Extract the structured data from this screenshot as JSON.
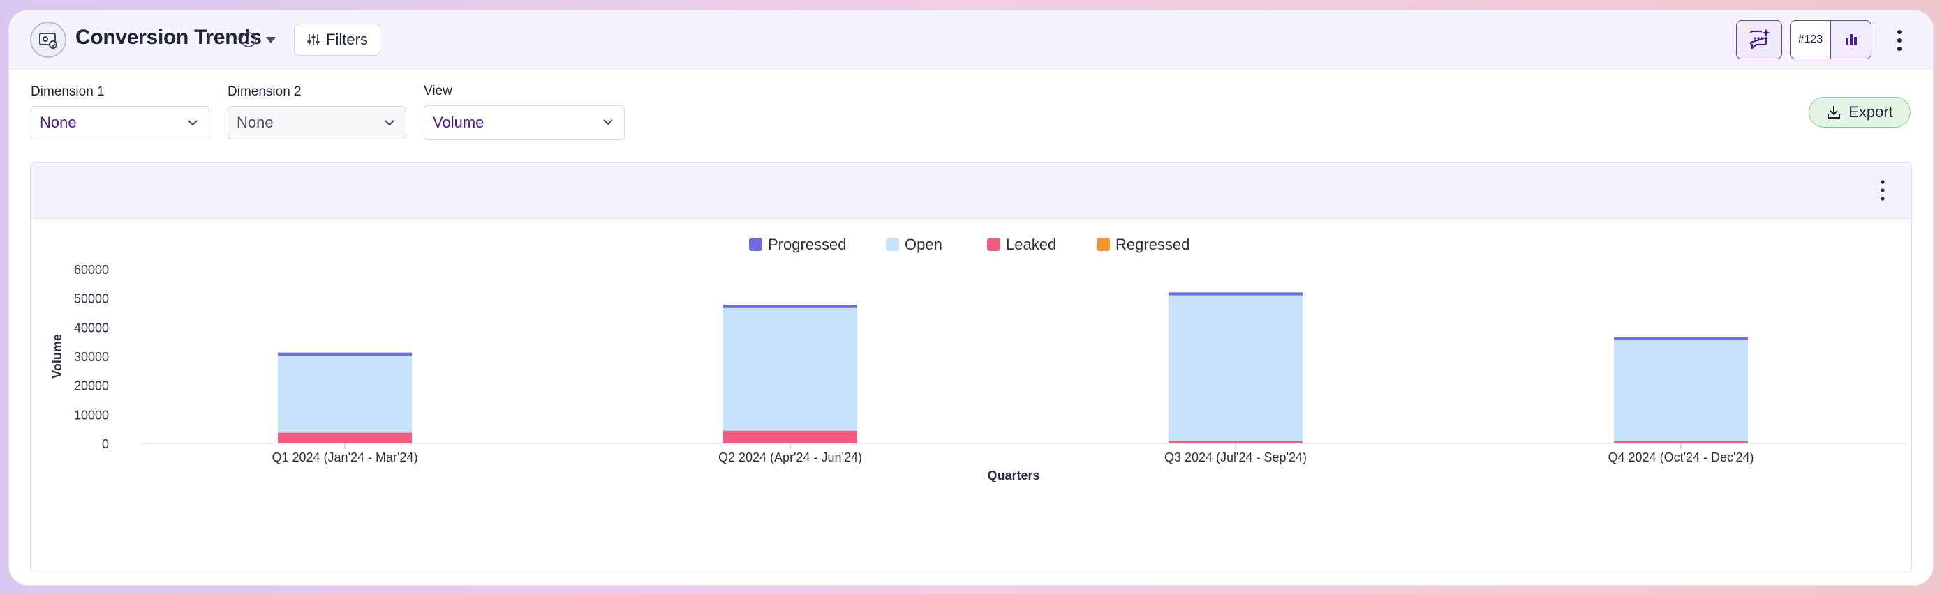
{
  "header": {
    "title": "Conversion Trends",
    "filters_label": "Filters",
    "toggle_number_label": "#123"
  },
  "controls": {
    "dimension1": {
      "label": "Dimension 1",
      "value": "None"
    },
    "dimension2": {
      "label": "Dimension 2",
      "value": "None"
    },
    "view": {
      "label": "View",
      "value": "Volume"
    },
    "export_label": "Export"
  },
  "colors": {
    "progressed": "#6c6ce0",
    "open": "#c6e3fb",
    "leaked": "#f25a80",
    "regressed": "#f7932f",
    "accent": "#6b3fa8"
  },
  "icons": {
    "logo": "chart-widget-icon",
    "info": "info-icon",
    "caret": "caret-down-icon",
    "filters": "sliders-icon",
    "chat": "ai-chat-sparkle-icon",
    "chart_toggle": "bar-chart-icon",
    "menu": "kebab-menu-icon",
    "export": "download-icon"
  },
  "chart_data": {
    "type": "bar",
    "stacked": true,
    "xlabel": "Quarters",
    "ylabel": "Volume",
    "ylim": [
      0,
      60000
    ],
    "yticks": [
      0,
      10000,
      20000,
      30000,
      40000,
      50000,
      60000
    ],
    "categories": [
      "Q1 2024 (Jan'24 - Mar'24)",
      "Q2 2024 (Apr'24 - Jun'24)",
      "Q3 2024 (Jul'24 - Sep'24)",
      "Q4 2024 (Oct'24 - Dec'24)"
    ],
    "legend_position": "top-center",
    "series": [
      {
        "name": "Leaked",
        "color": "#f25a80",
        "values": [
          3700,
          4400,
          800,
          800
        ]
      },
      {
        "name": "Regressed",
        "color": "#f7932f",
        "values": [
          0,
          0,
          0,
          0
        ]
      },
      {
        "name": "Open",
        "color": "#c6e3fb",
        "values": [
          26500,
          42200,
          50200,
          34800
        ]
      },
      {
        "name": "Progressed",
        "color": "#6c6ce0",
        "values": [
          1100,
          1100,
          1000,
          1100
        ]
      }
    ],
    "legend": [
      "Progressed",
      "Open",
      "Leaked",
      "Regressed"
    ]
  }
}
